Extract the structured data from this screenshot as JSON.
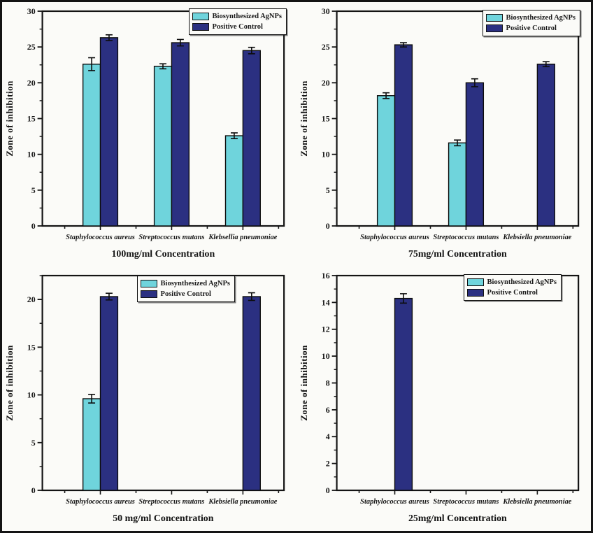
{
  "figure": {
    "ylabel": "Zone of inhibition"
  },
  "legend": {
    "agnps_label": "Biosynthesized AgNPs",
    "pc_label": "Positive Control"
  },
  "colors": {
    "agnps": "#6fd4dc",
    "pc": "#2b3081",
    "axis": "#141414",
    "background": "#fbfbf8"
  },
  "chart_data": [
    {
      "type": "bar",
      "title": "100mg/ml Concentration",
      "ylabel": "Zone of inhibition",
      "categories": [
        "Staphylococcus aureus",
        "Streptococcus mutans",
        "Klebsellia pneumoniae"
      ],
      "series": [
        {
          "name": "Biosynthesized AgNPs",
          "values": [
            22.6,
            22.3,
            12.6
          ],
          "errors": [
            0.9,
            0.35,
            0.4
          ]
        },
        {
          "name": "Positive Control",
          "values": [
            26.3,
            25.6,
            24.5
          ],
          "errors": [
            0.4,
            0.45,
            0.45
          ]
        }
      ],
      "ylim": [
        0,
        30
      ],
      "ytick_step": 5,
      "yminor_step": 2.5,
      "grid": false,
      "legend_position": "top-right"
    },
    {
      "type": "bar",
      "title": "75mg/ml Concentration",
      "ylabel": "Zone of inhibition",
      "categories": [
        "Staphylococcus aureus",
        "Streptococcus mutans",
        "Klebsiella pneumoniae"
      ],
      "series": [
        {
          "name": "Biosynthesized AgNPs",
          "values": [
            18.2,
            11.6,
            0
          ],
          "errors": [
            0.4,
            0.4,
            0
          ]
        },
        {
          "name": "Positive Control",
          "values": [
            25.3,
            20.0,
            22.6
          ],
          "errors": [
            0.3,
            0.55,
            0.35
          ]
        }
      ],
      "ylim": [
        0,
        30
      ],
      "ytick_step": 5,
      "yminor_step": 2.5,
      "grid": false,
      "legend_position": "top-right"
    },
    {
      "type": "bar",
      "title": "50 mg/ml Concentration",
      "ylabel": "Zone of inhibition",
      "categories": [
        "Staphylococcus aureus",
        "Streptococcus mutans",
        "Klebsiella pneumoniae"
      ],
      "series": [
        {
          "name": "Biosynthesized AgNPs",
          "values": [
            9.6,
            0,
            0
          ],
          "errors": [
            0.45,
            0,
            0
          ]
        },
        {
          "name": "Positive Control",
          "values": [
            20.3,
            0,
            20.3
          ],
          "errors": [
            0.35,
            0,
            0.4
          ]
        }
      ],
      "ylim": [
        0,
        22.5
      ],
      "ytick_step": 5,
      "yminor_step": 2.5,
      "grid": false,
      "legend_position": "top-right"
    },
    {
      "type": "bar",
      "title": "25mg/ml Concentration",
      "ylabel": "Zone of inhibition",
      "categories": [
        "Staphylococcus aureus",
        "Streptococcus mutans",
        "Klebsiella pneumoniae"
      ],
      "series": [
        {
          "name": "Biosynthesized AgNPs",
          "values": [
            0,
            0,
            0
          ],
          "errors": [
            0,
            0,
            0
          ]
        },
        {
          "name": "Positive Control",
          "values": [
            14.3,
            0,
            0
          ],
          "errors": [
            0.35,
            0,
            0
          ]
        }
      ],
      "ylim": [
        0,
        16
      ],
      "ytick_step": 2,
      "yminor_step": 1,
      "grid": false,
      "legend_position": "top-right"
    }
  ]
}
